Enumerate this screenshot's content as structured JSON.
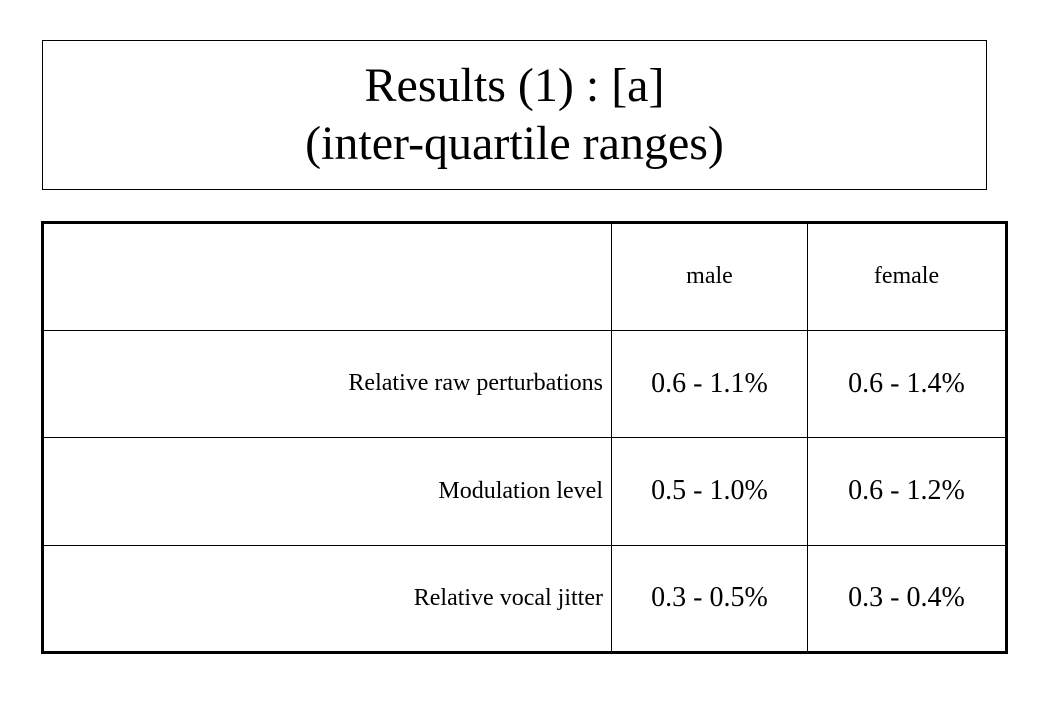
{
  "title": {
    "line1": "Results (1) : [a]",
    "line2": "(inter-quartile ranges)"
  },
  "table": {
    "header": [
      "",
      "male",
      "female"
    ],
    "rows": [
      {
        "label": "Relative raw perturbations",
        "male": "0.6 - 1.1%",
        "female": "0.6 - 1.4%"
      },
      {
        "label": "Modulation level",
        "male": "0.5 - 1.0%",
        "female": "0.6 - 1.2%"
      },
      {
        "label": "Relative vocal jitter",
        "male": "0.3 - 0.5%",
        "female": "0.3 - 0.4%"
      }
    ]
  }
}
